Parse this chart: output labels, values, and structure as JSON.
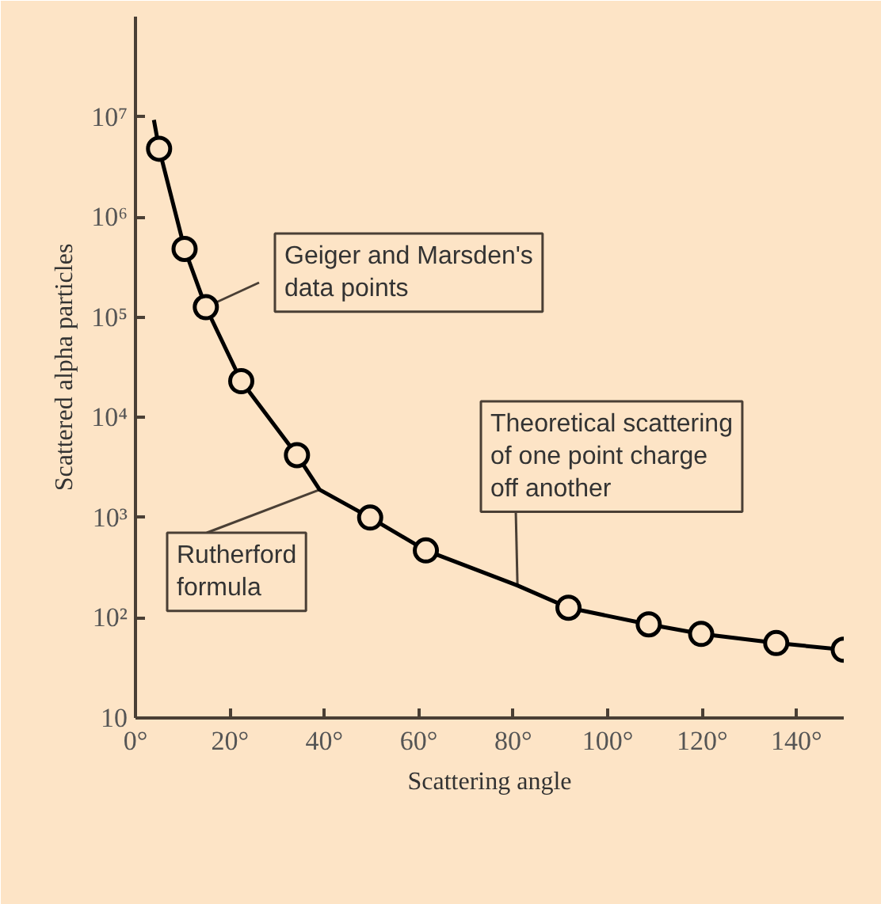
{
  "chart_data": {
    "type": "line",
    "xlabel": "Scattering angle",
    "ylabel": "Scattered alpha particles",
    "log": "y",
    "grid": false,
    "line_style": "solid",
    "xlim": [
      0,
      150
    ],
    "ylim": [
      10,
      100000000
    ],
    "xticks": [
      {
        "value": 0,
        "label": "0°"
      },
      {
        "value": 20,
        "label": "20°"
      },
      {
        "value": 40,
        "label": "40°"
      },
      {
        "value": 60,
        "label": "60°"
      },
      {
        "value": 80,
        "label": "80°"
      },
      {
        "value": 100,
        "label": "100°"
      },
      {
        "value": 120,
        "label": "120°"
      },
      {
        "value": 140,
        "label": "140°"
      }
    ],
    "yticks": [
      10,
      {
        "value": 100,
        "label": "10²"
      },
      {
        "value": 1000,
        "label": "10³"
      },
      {
        "value": 10000,
        "label": "10⁴"
      },
      {
        "value": 100000,
        "label": "10⁵"
      },
      {
        "value": 1000000,
        "label": "10⁶"
      },
      {
        "value": 10000000,
        "label": "10⁷"
      }
    ],
    "series": [
      {
        "color": "#000000",
        "x": [
          3.9,
          5,
          10.4,
          14.9,
          22.4,
          34.2,
          39,
          49.7,
          61.5,
          80.9,
          91.7,
          108.7,
          119.8,
          135.7,
          150
        ],
        "values": [
          9300000,
          4800000,
          480000,
          126000,
          23000,
          4200,
          1900,
          1000,
          470,
          210,
          126,
          86,
          69,
          56,
          48
        ]
      },
      {
        "type": "scatter",
        "marker": "circle",
        "color": "#000000",
        "x": [
          5,
          10.4,
          14.9,
          22.4,
          34.2,
          49.7,
          61.5,
          91.7,
          108.7,
          119.8,
          135.7,
          150
        ],
        "values": [
          4800000,
          480000,
          126000,
          23000,
          4200,
          1000,
          470,
          126,
          86,
          69,
          56,
          48
        ]
      }
    ],
    "annotations": [
      {
        "text": "Geiger and Marsden's\ndata points",
        "x": 14.9,
        "y": 126000
      },
      {
        "text": "Rutherford\nformula",
        "x": 39,
        "y": 1900
      },
      {
        "text": "Theoretical scattering\nof one point charge\noff another",
        "x": 80.9,
        "y": 210
      }
    ]
  }
}
